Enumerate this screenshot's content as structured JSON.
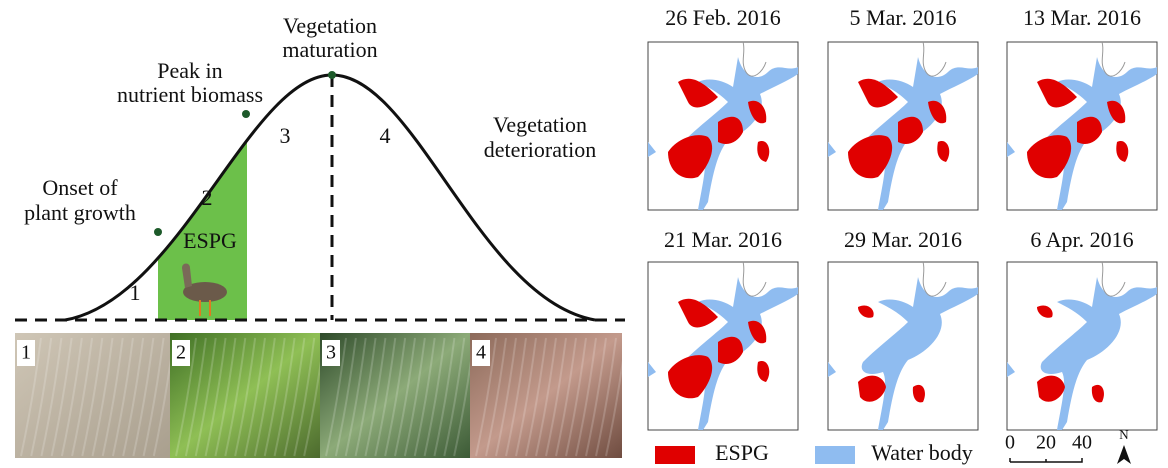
{
  "curve": {
    "annotations": [
      {
        "lines": [
          "Vegetation",
          "maturation"
        ]
      },
      {
        "lines": [
          "Peak in",
          "nutrient biomass"
        ]
      },
      {
        "lines": [
          "Onset of",
          "plant growth"
        ]
      },
      {
        "lines": [
          "Vegetation",
          "deterioration"
        ]
      }
    ],
    "stage_labels": [
      "1",
      "2",
      "3",
      "4"
    ],
    "espg_label": "ESPG"
  },
  "photos": [
    {
      "label": "1"
    },
    {
      "label": "2"
    },
    {
      "label": "3"
    },
    {
      "label": "4"
    }
  ],
  "maps": [
    {
      "date": "26 Feb. 2016"
    },
    {
      "date": "5 Mar. 2016"
    },
    {
      "date": "13 Mar. 2016"
    },
    {
      "date": "21 Mar. 2016"
    },
    {
      "date": "29 Mar. 2016"
    },
    {
      "date": "6 Apr. 2016"
    }
  ],
  "legend": [
    {
      "label": "ESPG"
    },
    {
      "label": "Water body"
    }
  ],
  "scale_bar": {
    "ticks": [
      "0",
      "20",
      "40"
    ],
    "north": "N"
  }
}
